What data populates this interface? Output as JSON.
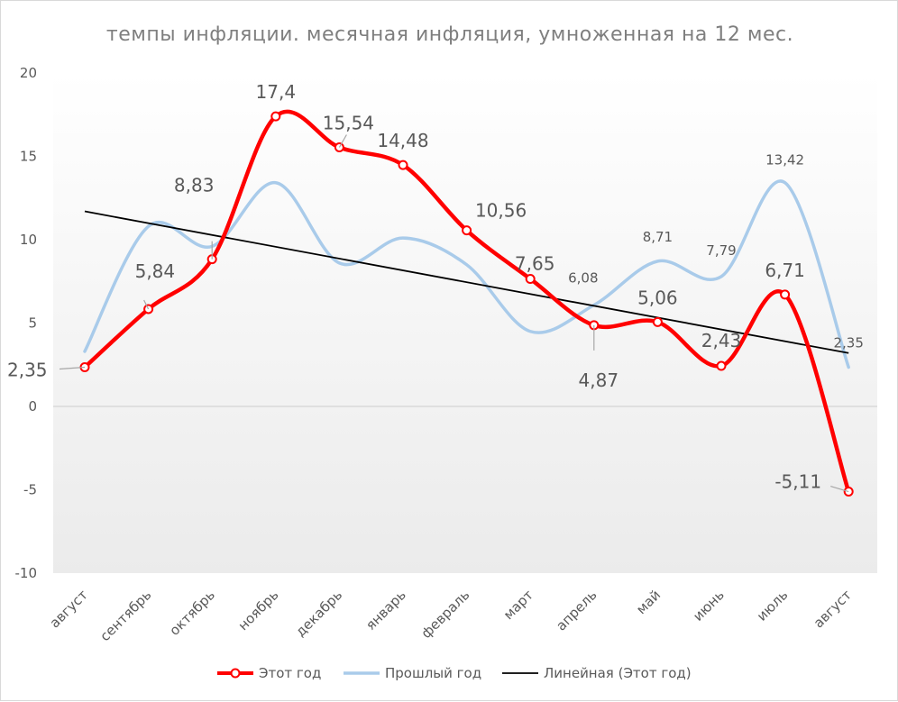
{
  "chart_data": {
    "type": "line",
    "title": "темпы инфляции. месячная инфляция, умноженная на 12 мес.",
    "categories": [
      "август",
      "сентябрь",
      "октябрь",
      "ноябрь",
      "декабрь",
      "январь",
      "февраль",
      "март",
      "апрель",
      "май",
      "июнь",
      "июль",
      "август"
    ],
    "ylim": [
      -10,
      20
    ],
    "yticks": [
      "-10",
      "-5",
      "0",
      "5",
      "10",
      "15",
      "20"
    ],
    "grid": false,
    "smooth": true,
    "legend_position": "bottom",
    "series": [
      {
        "name": "Этот год",
        "color": "#ff0000",
        "marker": "circle",
        "values": [
          2.35,
          5.84,
          8.83,
          17.4,
          15.54,
          14.48,
          10.56,
          7.65,
          4.87,
          5.06,
          2.43,
          6.71,
          -5.11
        ],
        "labels": [
          "2,35",
          "5,84",
          "8,83",
          "17,4",
          "15,54",
          "14,48",
          "10,56",
          "7,65",
          "4,87",
          "5,06",
          "2,43",
          "6,71",
          "-5,11"
        ]
      },
      {
        "name": "Прошлый год",
        "color": "#a9cbea",
        "values": [
          3.3,
          10.8,
          9.6,
          13.42,
          8.6,
          10.1,
          8.5,
          4.5,
          6.08,
          8.71,
          7.79,
          13.42,
          2.35
        ],
        "labels": [
          "",
          "",
          "",
          "",
          "",
          "",
          "",
          "",
          "6,08",
          "8,71",
          "7,79",
          "13,42",
          "2,35"
        ]
      },
      {
        "name": "Линейная (Этот год)",
        "color": "#000000",
        "type": "trendline",
        "start": 11.7,
        "end": 3.2
      }
    ]
  }
}
